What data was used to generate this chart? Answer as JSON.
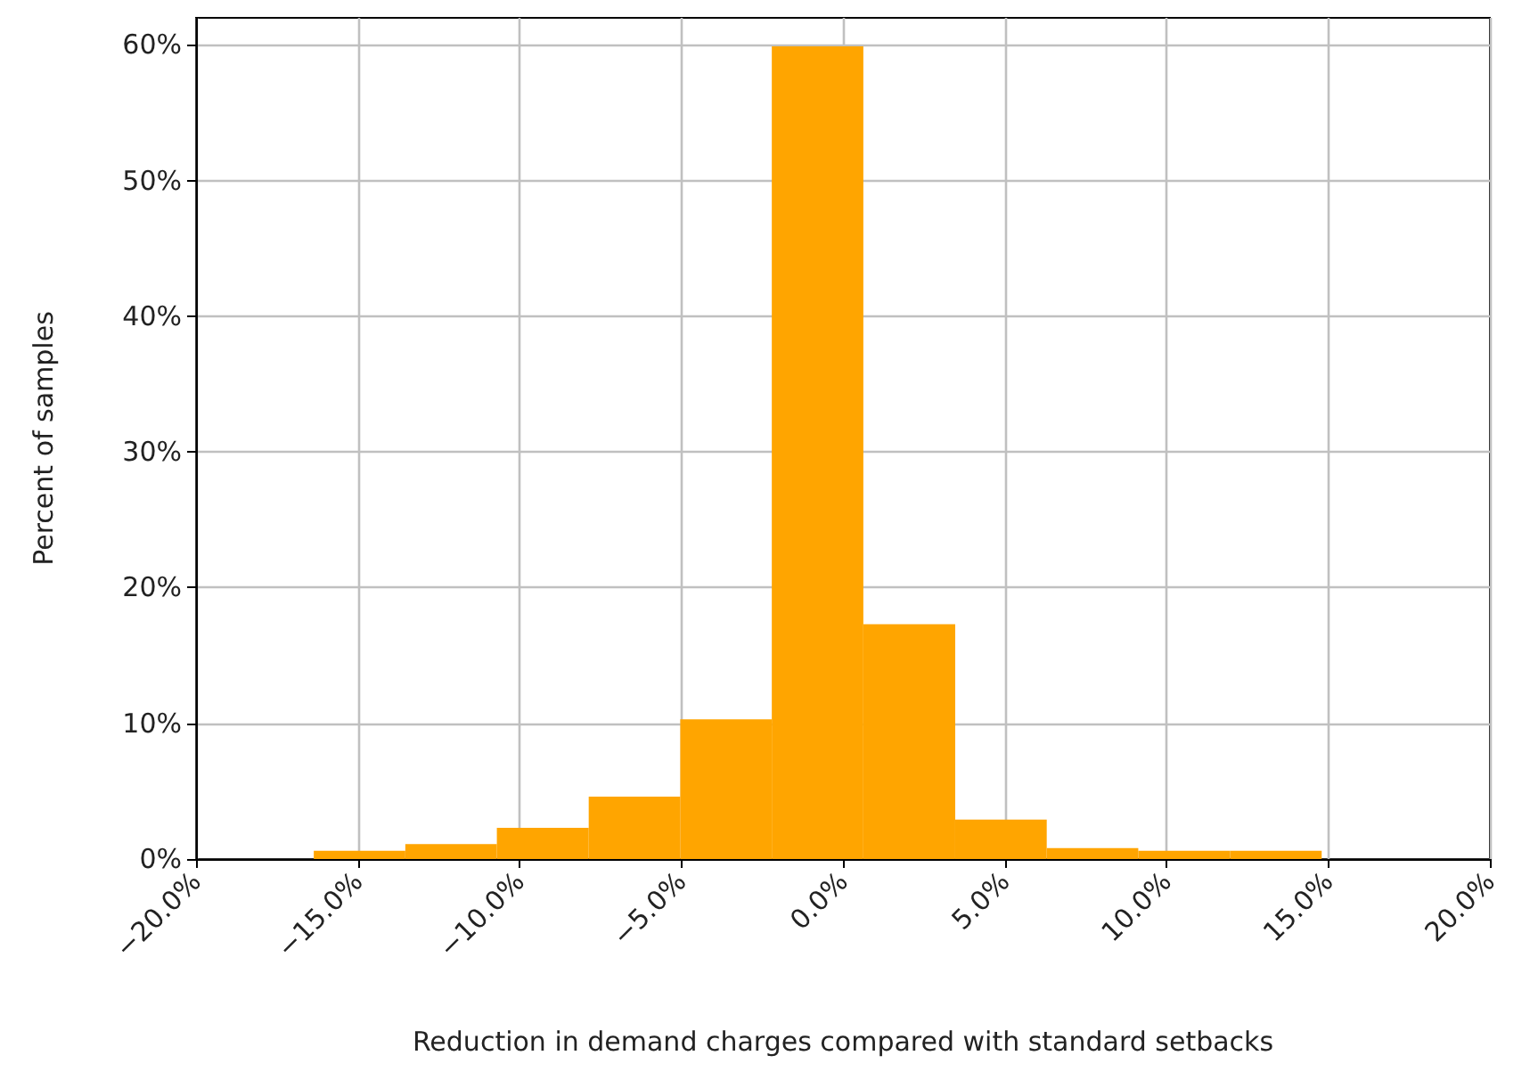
{
  "chart_data": {
    "type": "histogram",
    "xlabel": "Reduction in demand charges compared with standard setbacks",
    "ylabel": "Percent of samples",
    "bins": [
      -16.36,
      -13.53,
      -10.7,
      -7.86,
      -5.03,
      -2.2,
      0.63,
      3.47,
      6.3,
      9.13,
      11.97,
      14.8
    ],
    "values": [
      0.6,
      1.1,
      2.3,
      4.6,
      10.3,
      59.9,
      17.3,
      2.9,
      0.8,
      0.6,
      0.6
    ],
    "color": "#ffa500",
    "xlim": [
      -20,
      20
    ],
    "xticks": [
      {
        "value": -20,
        "label": "−20.0%"
      },
      {
        "value": -15,
        "label": "−15.0%"
      },
      {
        "value": -10,
        "label": "−10.0%"
      },
      {
        "value": -5,
        "label": "−5.0%"
      },
      {
        "value": 0,
        "label": "0.0%"
      },
      {
        "value": 5,
        "label": "5.0%"
      },
      {
        "value": 10,
        "label": "10.0%"
      },
      {
        "value": 15,
        "label": "15.0%"
      },
      {
        "value": 20,
        "label": "20.0%"
      }
    ],
    "ylim": [
      0,
      62
    ],
    "yticks": [
      {
        "value": 0,
        "label": "0%"
      },
      {
        "value": 10,
        "label": "10%"
      },
      {
        "value": 20,
        "label": "20%"
      },
      {
        "value": 30,
        "label": "30%"
      },
      {
        "value": 40,
        "label": "40%"
      },
      {
        "value": 50,
        "label": "50%"
      },
      {
        "value": 60,
        "label": "60%"
      }
    ],
    "grid": true
  }
}
